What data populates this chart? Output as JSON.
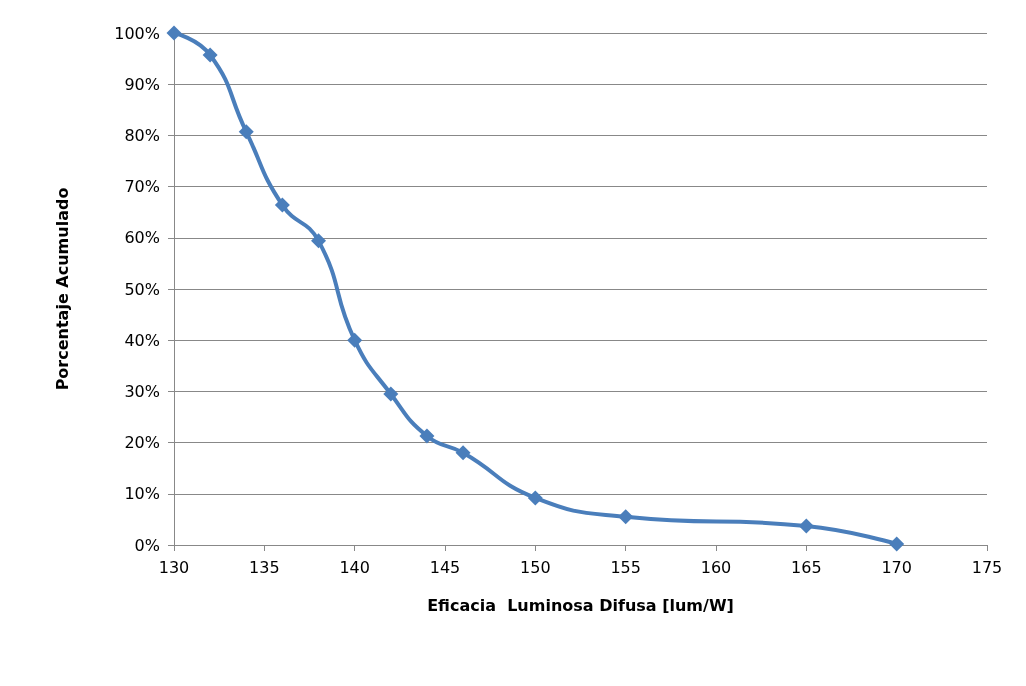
{
  "chart_data": {
    "type": "line",
    "xlabel": "Eficacia  Luminosa Difusa [lum/W]",
    "ylabel": "Porcentaje Acumulado",
    "x": [
      130,
      132,
      134,
      136,
      138,
      140,
      142,
      144,
      146,
      150,
      155,
      165,
      170
    ],
    "series": [
      {
        "color": "#4a7ebb",
        "values": [
          100,
          95.7,
          80.7,
          66.4,
          59.4,
          40,
          29.5,
          21.3,
          18,
          9.2,
          5.5,
          3.7,
          0.2
        ]
      }
    ],
    "xlim": [
      130,
      175
    ],
    "xticks": [
      130,
      135,
      140,
      145,
      150,
      155,
      160,
      165,
      170,
      175
    ],
    "ylim": [
      0,
      100
    ],
    "yticks": [
      {
        "value": 0,
        "label": "0%"
      },
      {
        "value": 10,
        "label": "10%"
      },
      {
        "value": 20,
        "label": "20%"
      },
      {
        "value": 30,
        "label": "30%"
      },
      {
        "value": 40,
        "label": "40%"
      },
      {
        "value": 50,
        "label": "50%"
      },
      {
        "value": 60,
        "label": "60%"
      },
      {
        "value": 70,
        "label": "70%"
      },
      {
        "value": 80,
        "label": "80%"
      },
      {
        "value": 90,
        "label": "90%"
      },
      {
        "value": 100,
        "label": "100%"
      }
    ],
    "grid": "y",
    "marker": "diamond",
    "line_style": "solid"
  }
}
